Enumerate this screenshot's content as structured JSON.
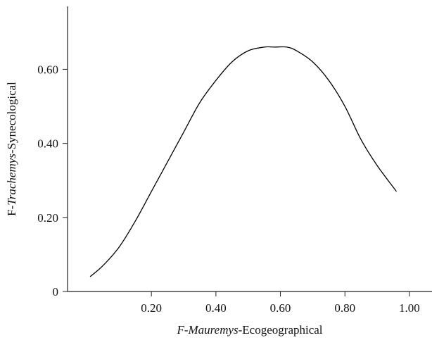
{
  "chart_data": {
    "type": "line",
    "title": "",
    "xlabel": {
      "parts": [
        {
          "text": "F-Mauremys",
          "italic": true
        },
        {
          "text": "-Ecogeographical",
          "italic": false
        }
      ]
    },
    "ylabel": {
      "parts": [
        {
          "text": "F-",
          "italic": false
        },
        {
          "text": "Trachemys",
          "italic": true
        },
        {
          "text": "-Synecological",
          "italic": false
        }
      ]
    },
    "xlim": [
      -0.06,
      1.07
    ],
    "ylim": [
      0,
      0.77
    ],
    "xticks": [
      {
        "value": 0.2,
        "label": "0.20"
      },
      {
        "value": 0.4,
        "label": "0.40"
      },
      {
        "value": 0.6,
        "label": "0.60"
      },
      {
        "value": 0.8,
        "label": "0.80"
      },
      {
        "value": 1.0,
        "label": "1.00"
      }
    ],
    "yticks": [
      {
        "value": 0,
        "label": "0"
      },
      {
        "value": 0.2,
        "label": "0.20"
      },
      {
        "value": 0.4,
        "label": "0.40"
      },
      {
        "value": 0.6,
        "label": "0.60"
      }
    ],
    "grid": false,
    "series": [
      {
        "color": "#000000",
        "x": [
          0.01,
          0.05,
          0.1,
          0.15,
          0.2,
          0.25,
          0.3,
          0.35,
          0.4,
          0.45,
          0.5,
          0.55,
          0.58,
          0.62,
          0.65,
          0.7,
          0.75,
          0.8,
          0.85,
          0.9,
          0.96
        ],
        "y": [
          0.04,
          0.07,
          0.12,
          0.19,
          0.27,
          0.35,
          0.43,
          0.51,
          0.57,
          0.62,
          0.65,
          0.66,
          0.66,
          0.66,
          0.65,
          0.62,
          0.57,
          0.5,
          0.41,
          0.34,
          0.27
        ]
      }
    ]
  }
}
